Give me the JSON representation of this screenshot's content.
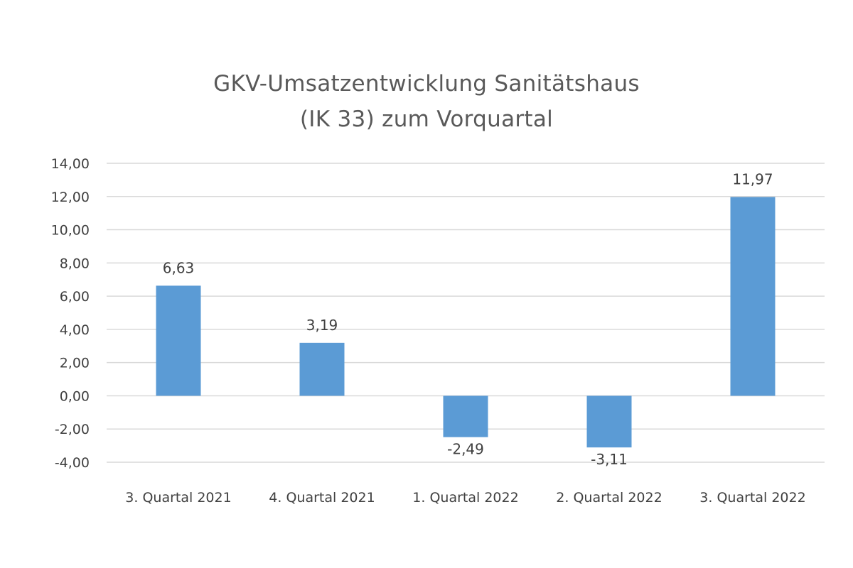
{
  "chart_data": {
    "type": "bar",
    "title": [
      "GKV-Umsatzentwicklung  Sanitätshaus",
      "(IK 33) zum Vorquartal"
    ],
    "categories": [
      "3. Quartal 2021",
      "4. Quartal 2021",
      "1. Quartal 2022",
      "2. Quartal 2022",
      "3. Quartal 2022"
    ],
    "series": [
      {
        "values": [
          6.63,
          3.19,
          -2.49,
          -3.11,
          11.97
        ],
        "value_labels": [
          "6,63",
          "3,19",
          "-2,49",
          "-3,11",
          "11,97"
        ],
        "color": "#5b9bd5"
      }
    ],
    "ylim": [
      -4,
      14
    ],
    "yticks": [
      14,
      12,
      10,
      8,
      6,
      4,
      2,
      0,
      -2,
      -4
    ],
    "ytick_labels": [
      "14,00",
      "12,00",
      "10,00",
      "8,00",
      "6,00",
      "4,00",
      "2,00",
      "0,00",
      "-2,00",
      "-4,00"
    ],
    "xlabel": "",
    "ylabel": "",
    "grid": true,
    "legend": "none",
    "colors": {
      "bar": "#5b9bd5",
      "grid": "#d9d9d9",
      "text": "#404040",
      "title": "#595959"
    }
  }
}
